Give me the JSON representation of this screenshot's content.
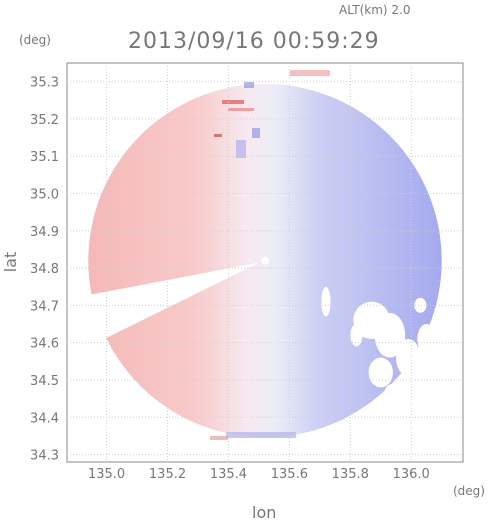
{
  "chart_data": {
    "type": "heatmap",
    "title": "2013/09/16 00:59:29",
    "altitude_label": "ALT(km) 2.0",
    "xlabel": "lon",
    "ylabel": "lat",
    "x_unit": "(deg)",
    "y_unit": "(deg)",
    "xlim": [
      134.87,
      136.17
    ],
    "ylim": [
      34.28,
      35.35
    ],
    "x_ticks": [
      "135.0",
      "135.2",
      "135.4",
      "135.6",
      "135.8",
      "136.0"
    ],
    "y_ticks": [
      "34.3",
      "34.4",
      "34.5",
      "34.6",
      "34.7",
      "34.8",
      "34.9",
      "35.0",
      "35.1",
      "35.2",
      "35.3"
    ],
    "radar_center": {
      "lon": 135.52,
      "lat": 34.82
    },
    "radar_range_deg": 0.58,
    "field": "radial velocity (doppler): red = away, blue = toward",
    "colors": {
      "west_sector": "#f8c4c4",
      "center": "#f1f1fb",
      "east_sector": "#aab0f0"
    },
    "grid": true
  }
}
